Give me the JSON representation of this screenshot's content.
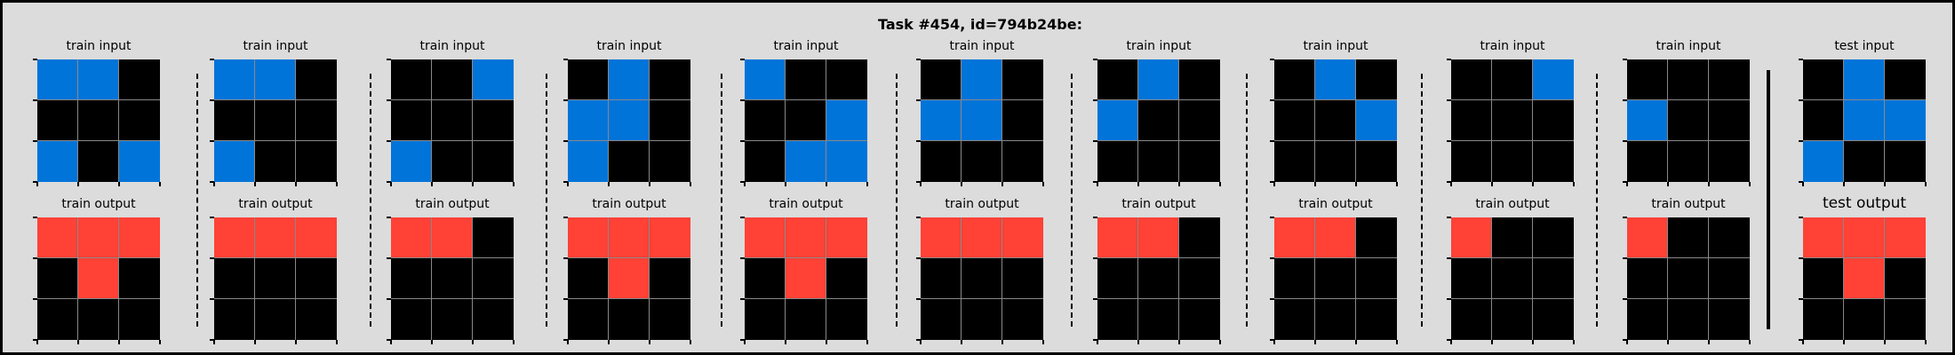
{
  "title": "Task #454, id=794b24be:",
  "palette": {
    "0": "#000000",
    "1": "#0074d9",
    "2": "#ff4136"
  },
  "pairs": [
    {
      "input_label": "train input",
      "output_label": "train output",
      "input": [
        [
          1,
          1,
          0
        ],
        [
          0,
          0,
          0
        ],
        [
          1,
          0,
          1
        ]
      ],
      "output": [
        [
          2,
          2,
          2
        ],
        [
          0,
          2,
          0
        ],
        [
          0,
          0,
          0
        ]
      ]
    },
    {
      "input_label": "train input",
      "output_label": "train output",
      "input": [
        [
          1,
          1,
          0
        ],
        [
          0,
          0,
          0
        ],
        [
          1,
          0,
          0
        ]
      ],
      "output": [
        [
          2,
          2,
          2
        ],
        [
          0,
          0,
          0
        ],
        [
          0,
          0,
          0
        ]
      ]
    },
    {
      "input_label": "train input",
      "output_label": "train output",
      "input": [
        [
          0,
          0,
          1
        ],
        [
          0,
          0,
          0
        ],
        [
          1,
          0,
          0
        ]
      ],
      "output": [
        [
          2,
          2,
          0
        ],
        [
          0,
          0,
          0
        ],
        [
          0,
          0,
          0
        ]
      ]
    },
    {
      "input_label": "train input",
      "output_label": "train output",
      "input": [
        [
          0,
          1,
          0
        ],
        [
          1,
          1,
          0
        ],
        [
          1,
          0,
          0
        ]
      ],
      "output": [
        [
          2,
          2,
          2
        ],
        [
          0,
          2,
          0
        ],
        [
          0,
          0,
          0
        ]
      ]
    },
    {
      "input_label": "train input",
      "output_label": "train output",
      "input": [
        [
          1,
          0,
          0
        ],
        [
          0,
          0,
          1
        ],
        [
          0,
          1,
          1
        ]
      ],
      "output": [
        [
          2,
          2,
          2
        ],
        [
          0,
          2,
          0
        ],
        [
          0,
          0,
          0
        ]
      ]
    },
    {
      "input_label": "train input",
      "output_label": "train output",
      "input": [
        [
          0,
          1,
          0
        ],
        [
          1,
          1,
          0
        ],
        [
          0,
          0,
          0
        ]
      ],
      "output": [
        [
          2,
          2,
          2
        ],
        [
          0,
          0,
          0
        ],
        [
          0,
          0,
          0
        ]
      ]
    },
    {
      "input_label": "train input",
      "output_label": "train output",
      "input": [
        [
          0,
          1,
          0
        ],
        [
          1,
          0,
          0
        ],
        [
          0,
          0,
          0
        ]
      ],
      "output": [
        [
          2,
          2,
          0
        ],
        [
          0,
          0,
          0
        ],
        [
          0,
          0,
          0
        ]
      ]
    },
    {
      "input_label": "train input",
      "output_label": "train output",
      "input": [
        [
          0,
          1,
          0
        ],
        [
          0,
          0,
          1
        ],
        [
          0,
          0,
          0
        ]
      ],
      "output": [
        [
          2,
          2,
          0
        ],
        [
          0,
          0,
          0
        ],
        [
          0,
          0,
          0
        ]
      ]
    },
    {
      "input_label": "train input",
      "output_label": "train output",
      "input": [
        [
          0,
          0,
          1
        ],
        [
          0,
          0,
          0
        ],
        [
          0,
          0,
          0
        ]
      ],
      "output": [
        [
          2,
          0,
          0
        ],
        [
          0,
          0,
          0
        ],
        [
          0,
          0,
          0
        ]
      ]
    },
    {
      "input_label": "train input",
      "output_label": "train output",
      "input": [
        [
          0,
          0,
          0
        ],
        [
          1,
          0,
          0
        ],
        [
          0,
          0,
          0
        ]
      ],
      "output": [
        [
          2,
          0,
          0
        ],
        [
          0,
          0,
          0
        ],
        [
          0,
          0,
          0
        ]
      ]
    }
  ],
  "test": {
    "input_label": "test input",
    "output_label": "test output",
    "input": [
      [
        0,
        1,
        0
      ],
      [
        0,
        1,
        1
      ],
      [
        1,
        0,
        0
      ]
    ],
    "output": [
      [
        2,
        2,
        2
      ],
      [
        0,
        2,
        0
      ],
      [
        0,
        0,
        0
      ]
    ]
  }
}
